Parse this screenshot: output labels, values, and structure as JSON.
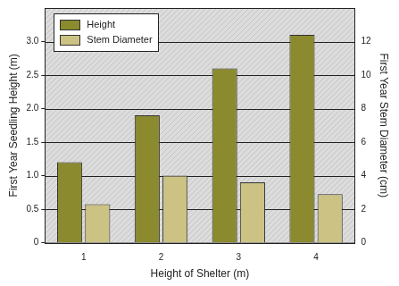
{
  "chart_data": {
    "type": "bar",
    "x_label": "Height of Shelter (m)",
    "y_label": "First Year Seedling Height (m)",
    "y2_label": "First Year Stem Diameter (cm)",
    "categories": [
      "1",
      "2",
      "3",
      "4"
    ],
    "series": [
      {
        "name": "Height",
        "color": "#8b8a2f",
        "values": [
          1.2,
          1.9,
          2.6,
          3.1
        ]
      },
      {
        "name": "Stem Diameter",
        "color": "#cbc284",
        "values": [
          2.3,
          4.0,
          3.6,
          2.9
        ],
        "axis": "y2"
      }
    ],
    "ylim": [
      0,
      3.5
    ],
    "yticks": [
      0,
      0.5,
      {
        "value": 1,
        "label": "1.0"
      },
      1.5,
      {
        "value": 2,
        "label": "2.0"
      },
      2.5,
      {
        "value": 3,
        "label": "3.0"
      }
    ],
    "y2lim": [
      0,
      14
    ],
    "y2ticks": [
      0,
      2,
      4,
      6,
      8,
      10,
      12
    ],
    "grid": true,
    "legend": "upper left"
  }
}
